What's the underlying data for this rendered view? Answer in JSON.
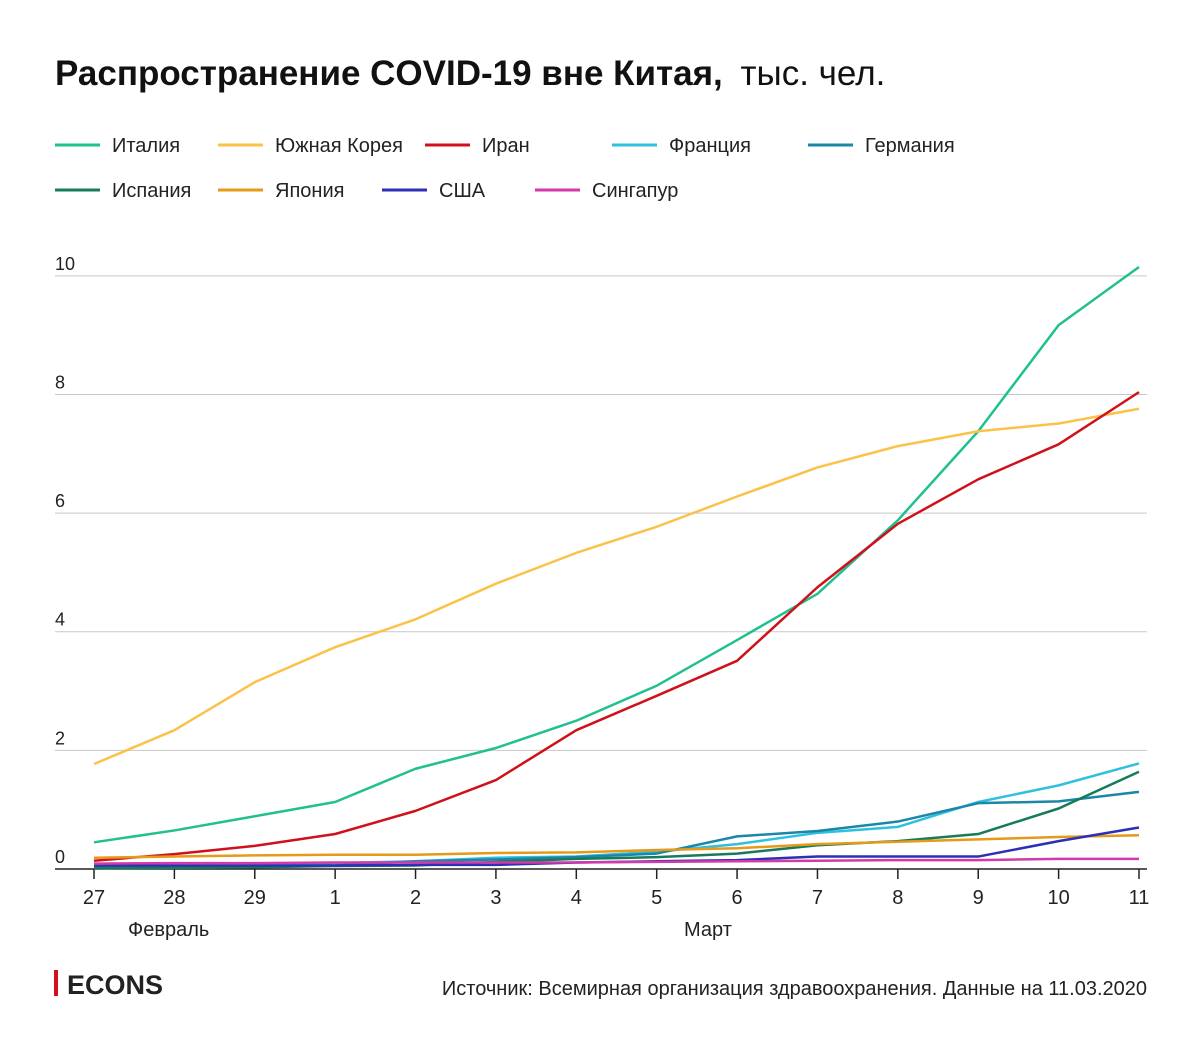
{
  "chart_data": {
    "type": "line",
    "title": "Распространение COVID-19 вне Китая,",
    "subtitle": "тыс. чел.",
    "categories": [
      "27",
      "28",
      "29",
      "1",
      "2",
      "3",
      "4",
      "5",
      "6",
      "7",
      "8",
      "9",
      "10",
      "11"
    ],
    "month_labels": [
      "Февраль",
      "Март"
    ],
    "ylim": [
      0,
      10.2
    ],
    "yticks": [
      0,
      2,
      4,
      6,
      8,
      10
    ],
    "grid": true,
    "legend": "top-left",
    "series": [
      {
        "name": "Италия",
        "color": "#20c08f",
        "values": [
          0.45,
          0.65,
          0.89,
          1.13,
          1.69,
          2.04,
          2.5,
          3.09,
          3.86,
          4.64,
          5.88,
          7.38,
          9.17,
          10.15
        ]
      },
      {
        "name": "Южная Корея",
        "color": "#fbc24a",
        "values": [
          1.77,
          2.34,
          3.15,
          3.74,
          4.21,
          4.81,
          5.33,
          5.77,
          6.28,
          6.77,
          7.13,
          7.38,
          7.51,
          7.76
        ]
      },
      {
        "name": "Иран",
        "color": "#d0101a",
        "values": [
          0.14,
          0.25,
          0.39,
          0.59,
          0.98,
          1.5,
          2.34,
          2.92,
          3.51,
          4.75,
          5.82,
          6.57,
          7.16,
          8.04
        ]
      },
      {
        "name": "Франция",
        "color": "#2fc0e0",
        "values": [
          0.04,
          0.04,
          0.06,
          0.1,
          0.13,
          0.19,
          0.21,
          0.29,
          0.42,
          0.61,
          0.71,
          1.13,
          1.41,
          1.78
        ]
      },
      {
        "name": "Германия",
        "color": "#1b86a8",
        "values": [
          0.03,
          0.03,
          0.05,
          0.06,
          0.13,
          0.16,
          0.2,
          0.26,
          0.55,
          0.64,
          0.8,
          1.11,
          1.14,
          1.3
        ]
      },
      {
        "name": "Испания",
        "color": "#177b5a",
        "values": [
          0.01,
          0.02,
          0.03,
          0.05,
          0.06,
          0.12,
          0.17,
          0.2,
          0.26,
          0.4,
          0.47,
          0.59,
          1.02,
          1.64
        ]
      },
      {
        "name": "Япония",
        "color": "#e59a1a",
        "values": [
          0.19,
          0.21,
          0.23,
          0.24,
          0.24,
          0.27,
          0.28,
          0.32,
          0.35,
          0.42,
          0.46,
          0.5,
          0.54,
          0.57
        ]
      },
      {
        "name": "США",
        "color": "#2d2fb5",
        "values": [
          0.06,
          0.06,
          0.06,
          0.06,
          0.07,
          0.07,
          0.11,
          0.13,
          0.15,
          0.21,
          0.21,
          0.21,
          0.47,
          0.7
        ]
      },
      {
        "name": "Сингапур",
        "color": "#d13aa8",
        "values": [
          0.09,
          0.1,
          0.1,
          0.11,
          0.11,
          0.11,
          0.11,
          0.12,
          0.13,
          0.14,
          0.15,
          0.15,
          0.17,
          0.17
        ]
      }
    ]
  },
  "footer": {
    "logo": "ECONS",
    "source": "Источник: Всемирная организация здравоохранения. Данные на 11.03.2020"
  }
}
